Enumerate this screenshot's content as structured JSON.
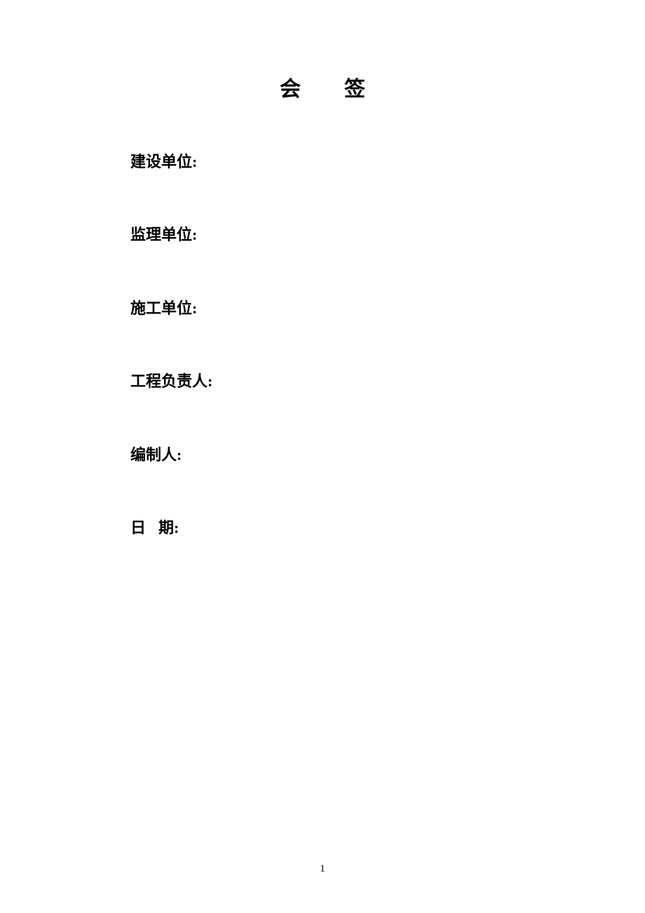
{
  "title": "会签",
  "fields": {
    "construction_unit": "建设单位:",
    "supervision_unit": "监理单位:",
    "builder_unit": "施工单位:",
    "project_lead": "工程负责人:",
    "compiler": "编制人:",
    "date_label_char1": "日",
    "date_label_char2": "期:"
  },
  "page_number": "1",
  "colors": {
    "background": "#ffffff",
    "text": "#000000"
  },
  "typography": {
    "title_fontsize": 30,
    "field_fontsize": 22,
    "pagenum_fontsize": 15
  }
}
